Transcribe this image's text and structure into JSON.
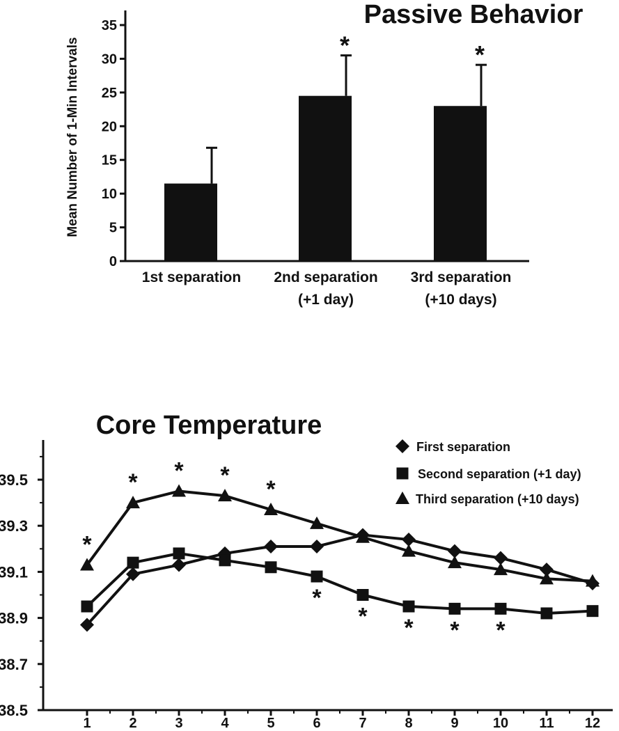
{
  "chart_data": [
    {
      "type": "bar",
      "title": "Passive Behavior",
      "ylabel": "Mean Number of 1-Min Intervals",
      "ylim": [
        0,
        35
      ],
      "yticks": [
        0,
        5,
        10,
        15,
        20,
        25,
        30,
        35
      ],
      "categories": [
        {
          "line1": "1st separation",
          "line2": ""
        },
        {
          "line1": "2nd separation",
          "line2": "(+1 day)"
        },
        {
          "line1": "3rd separation",
          "line2": "(+10 days)"
        }
      ],
      "values": [
        11.5,
        24.5,
        23.0
      ],
      "errors": [
        5.3,
        6.0,
        6.1
      ],
      "significance": [
        "",
        "*",
        "*"
      ]
    },
    {
      "type": "line",
      "title": "Core Temperature",
      "ylim": [
        38.5,
        39.67
      ],
      "yticks": [
        "38.5",
        "38.7",
        "38.9",
        "39.1",
        "39.3",
        "39.5"
      ],
      "x": [
        1,
        2,
        3,
        4,
        5,
        6,
        7,
        8,
        9,
        10,
        11,
        12
      ],
      "series": [
        {
          "name": "First separation",
          "marker": "diamond",
          "values": [
            38.87,
            39.09,
            39.13,
            39.18,
            39.21,
            39.21,
            39.26,
            39.24,
            39.19,
            39.16,
            39.11,
            39.05
          ],
          "significance": []
        },
        {
          "name": "Second separation (+1 day)",
          "marker": "square",
          "values": [
            38.95,
            39.14,
            39.18,
            39.15,
            39.12,
            39.08,
            39.0,
            38.95,
            38.94,
            38.94,
            38.92,
            38.93
          ],
          "significance": [
            6,
            7,
            8,
            9,
            10
          ]
        },
        {
          "name": "Third separation (+10 days)",
          "marker": "triangle",
          "values": [
            39.13,
            39.4,
            39.45,
            39.43,
            39.37,
            39.31,
            39.25,
            39.19,
            39.14,
            39.11,
            39.07,
            39.06
          ],
          "significance": [
            1,
            2,
            3,
            4,
            5
          ]
        }
      ],
      "significance_label": "*"
    }
  ]
}
